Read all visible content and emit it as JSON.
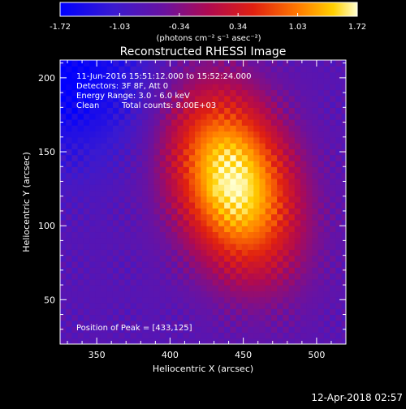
{
  "chart_data": {
    "type": "heatmap",
    "title": "Reconstructed RHESSI Image",
    "xlabel": "Heliocentric X (arcsec)",
    "ylabel": "Heliocentric Y (arcsec)",
    "xlim": [
      325,
      520
    ],
    "ylim": [
      20,
      212
    ],
    "x_ticks": [
      350,
      400,
      450,
      500
    ],
    "y_ticks": [
      50,
      100,
      150,
      200
    ],
    "colorbar": {
      "min": -1.72,
      "max": 1.72,
      "ticks": [
        "-1.72",
        "-1.03",
        "-0.34",
        "0.34",
        "1.03",
        "1.72"
      ],
      "tick_values": [
        -1.72,
        -1.03,
        -0.34,
        0.34,
        1.03,
        1.72
      ],
      "unit_label": "(photons cm⁻² s⁻¹ asec⁻²)",
      "colors": [
        "#0000ff",
        "#5a1aa0",
        "#9a0a6a",
        "#e01a10",
        "#ff8a00",
        "#ffffc0"
      ]
    },
    "peak": [
      433,
      125
    ],
    "source": {
      "center": [
        443,
        130
      ],
      "sigma_x": 28,
      "sigma_y": 45,
      "rotation_deg": -18,
      "peak_value": 1.72,
      "background_value": -0.75,
      "ripple_amplitude": 0.18,
      "ripple_period_arcsec": 9
    },
    "annotations": [
      "11-Jun-2016 15:51:12.000 to 15:52:24.000",
      "Detectors: 3F 8F, Att 0",
      "Energy Range: 3.0 - 6.0 keV",
      "Clean",
      "Total counts: 8.00E+03",
      "Position of Peak = [433,125]"
    ]
  },
  "footer": {
    "timestamp": "12-Apr-2018 02:57"
  }
}
